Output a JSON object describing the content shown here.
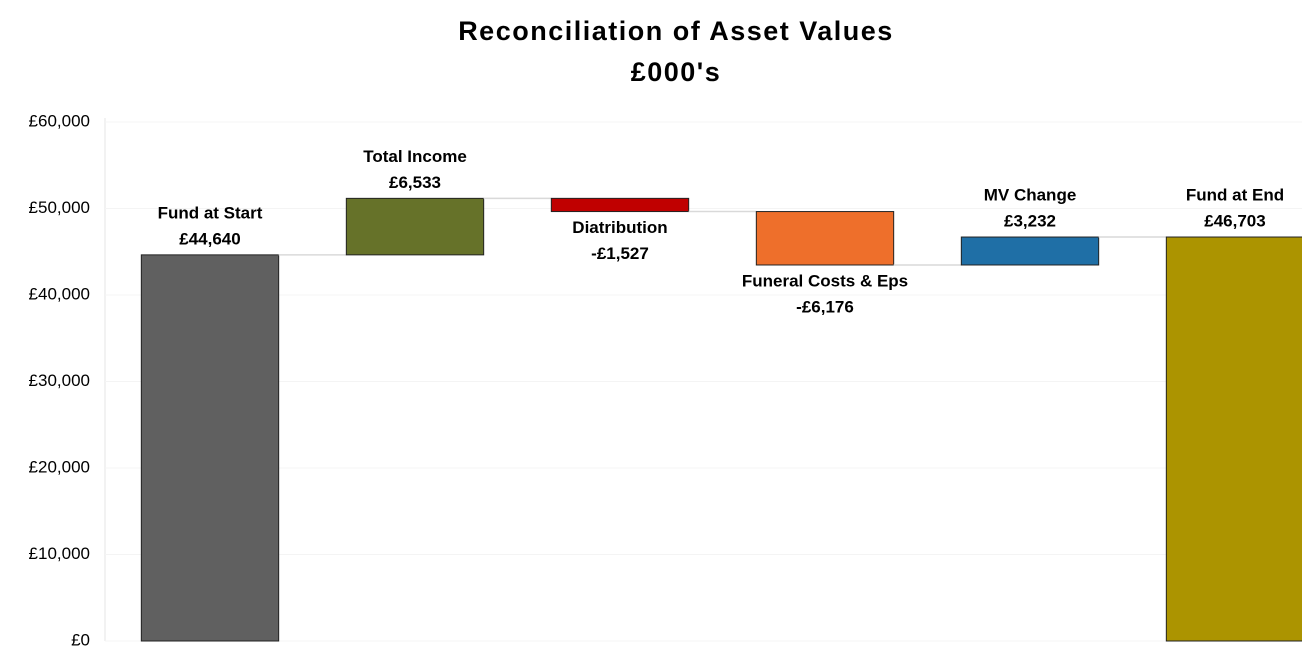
{
  "chart_data": {
    "type": "waterfall",
    "title": "Reconciliation of Asset Values",
    "subtitle": "£000's",
    "categories": [
      "Fund at Start",
      "Total Income",
      "Diatribution",
      "Funeral Costs & Eps",
      "MV Change",
      "Fund at End"
    ],
    "values": [
      44640,
      6533,
      -1527,
      -6176,
      3232,
      46703
    ],
    "value_labels": [
      "£44,640",
      "£6,533",
      "-£1,527",
      "-£6,176",
      "£3,232",
      "£46,703"
    ],
    "measure": [
      "total",
      "relative",
      "relative",
      "relative",
      "relative",
      "total"
    ],
    "colors": [
      "#606060",
      "#667229",
      "#c00000",
      "#ee6f2b",
      "#1f6fa6",
      "#ac9400"
    ],
    "ylim": [
      0,
      60000
    ],
    "yticks": [
      {
        "value": 0,
        "label": "£0"
      },
      {
        "value": 10000,
        "label": "£10,000"
      },
      {
        "value": 20000,
        "label": "£20,000"
      },
      {
        "value": 30000,
        "label": "£30,000"
      },
      {
        "value": 40000,
        "label": "£40,000"
      },
      {
        "value": 50000,
        "label": "£50,000"
      },
      {
        "value": 60000,
        "label": "£60,000"
      }
    ],
    "grid": true
  }
}
